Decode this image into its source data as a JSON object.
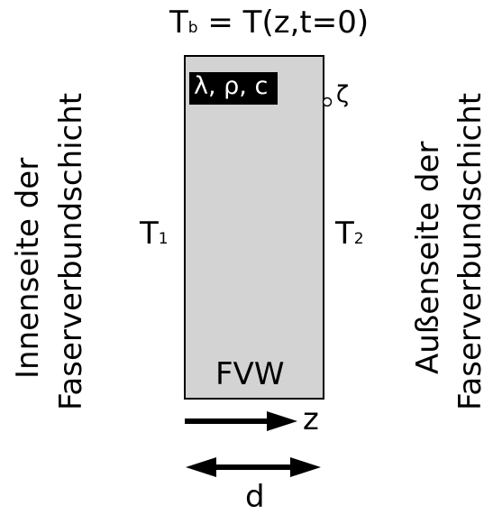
{
  "equation": {
    "symbol": "T",
    "subscript": "b",
    "rhs": "= T(z,t=0)"
  },
  "material_label": "λ, ρ, c",
  "zeta_label": "ζ",
  "temp_left": {
    "symbol": "T",
    "subscript": "1"
  },
  "temp_right": {
    "symbol": "T",
    "subscript": "2"
  },
  "slab_label": "FVW",
  "z_label": "z",
  "d_label": "d",
  "left_text": {
    "line1": "Innenseite der",
    "line2": "Faserverbundschicht"
  },
  "right_text": {
    "line1": "Außenseite der",
    "line2": "Faserverbundschicht"
  },
  "colors": {
    "slab_fill": "#d3d3d3",
    "stroke": "#000000",
    "label_bg": "#000000",
    "label_fg": "#ffffff"
  }
}
